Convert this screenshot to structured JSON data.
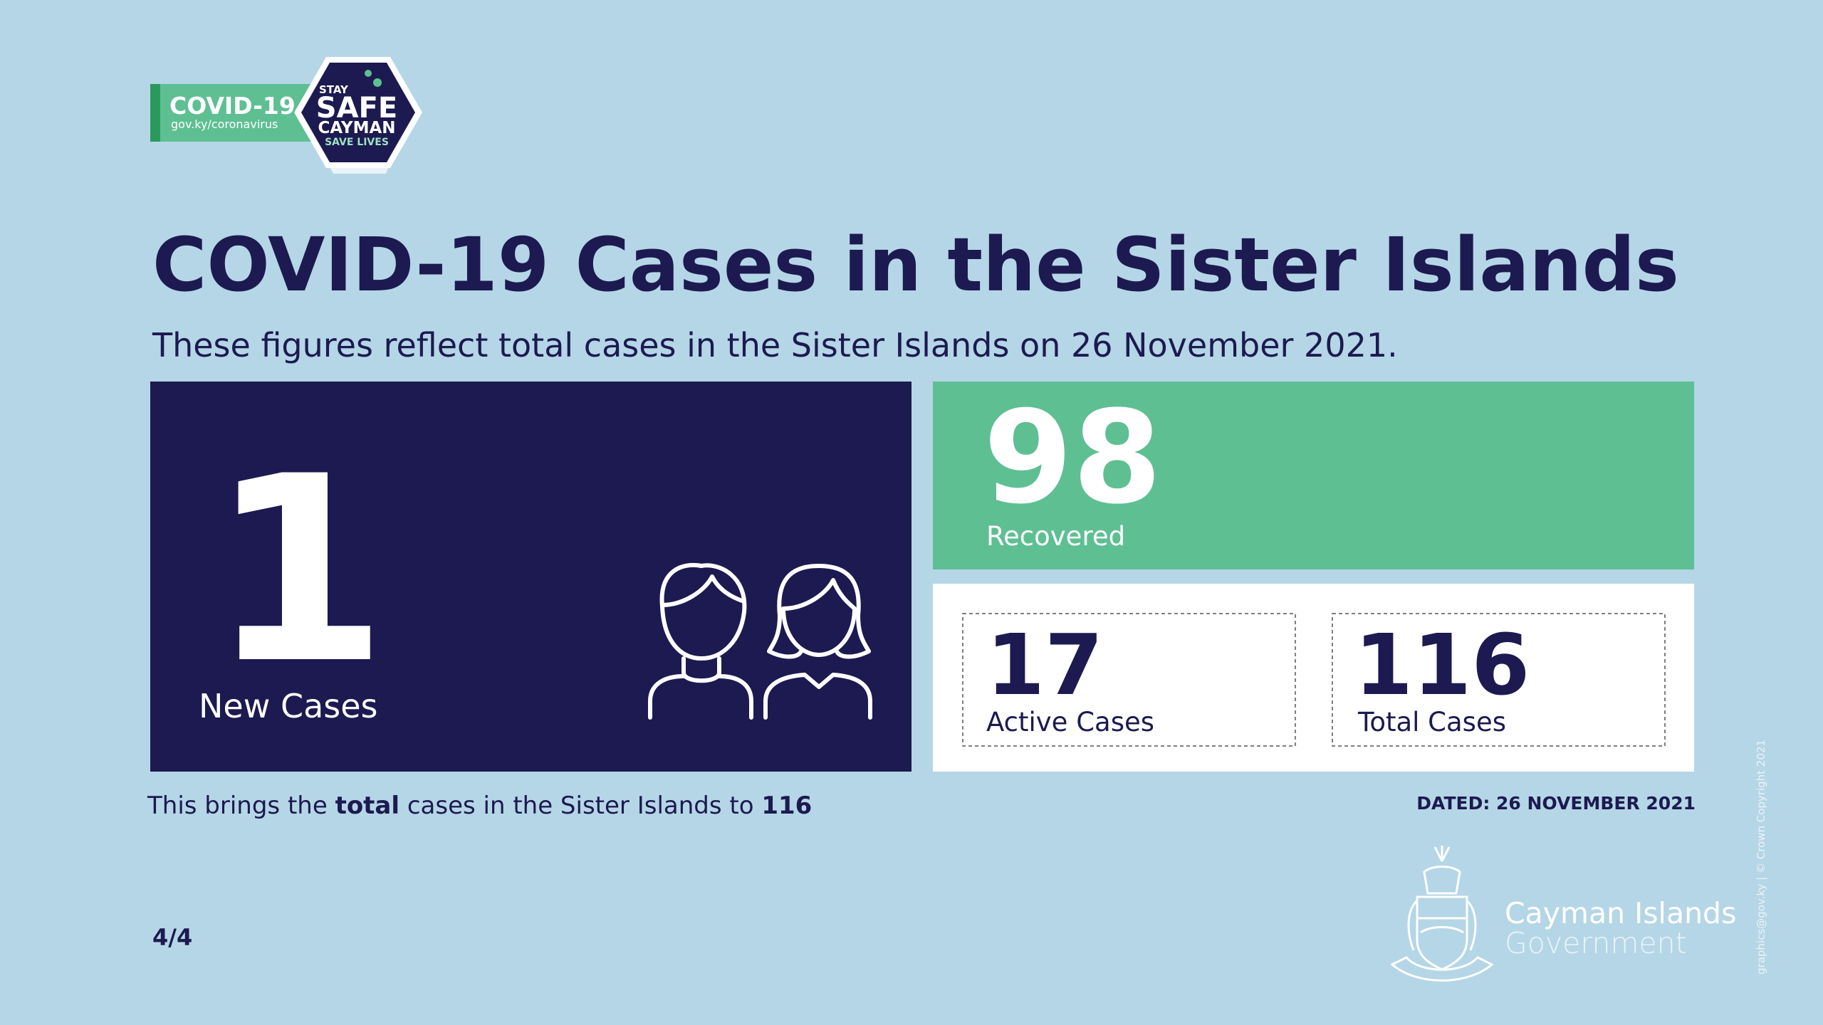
{
  "badge": {
    "label": "COVID-19",
    "url": "gov.ky/coronavirus",
    "stay": "STAY",
    "safe": "SAFE",
    "cayman": "CAYMAN",
    "save": "SAVE LIVES"
  },
  "title": "COVID-19 Cases in the Sister Islands",
  "subtitle": "These figures reflect total cases in the Sister Islands on 26 November 2021.",
  "new_cases": {
    "value": 1,
    "label": "New Cases"
  },
  "recovered": {
    "value": 98,
    "label": "Recovered"
  },
  "active": {
    "value": 17,
    "label": "Active Cases"
  },
  "total": {
    "value": 116,
    "label": "Total Cases"
  },
  "footnote": {
    "prefix": "This brings the",
    "bold": "total",
    "middle": "cases in the Sister Islands to",
    "number": 116
  },
  "dated": "DATED: 26 NOVEMBER 2021",
  "page": "4/4",
  "government": {
    "line1": "Cayman Islands",
    "line2": "Government"
  },
  "credit": "graphics@gov.ky | © Crown Copyright 2021"
}
